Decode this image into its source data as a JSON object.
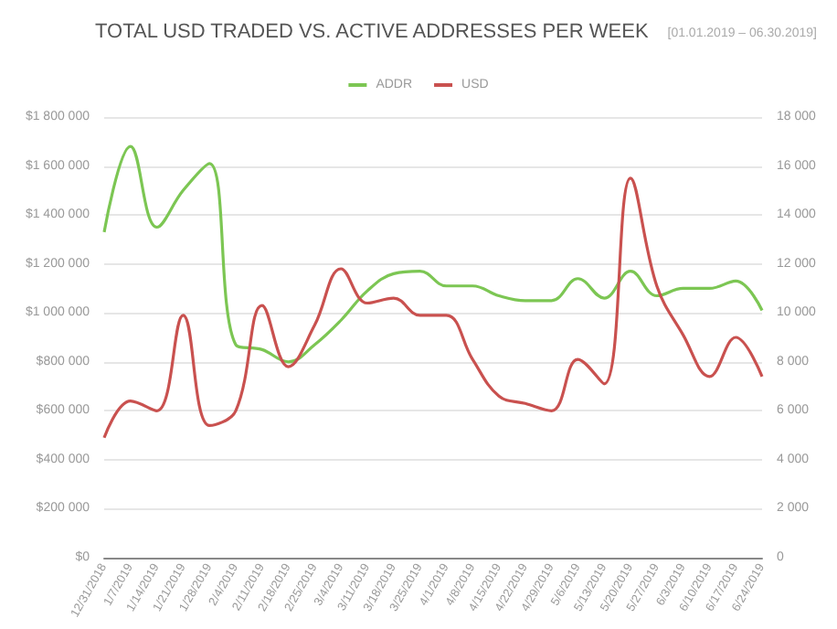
{
  "chart_data": {
    "type": "line",
    "title": "TOTAL USD TRADED VS. ACTIVE ADDRESSES PER WEEK",
    "subtitle": "[01.01.2019 – 06.30.2019]",
    "categories": [
      "12/31/2018",
      "1/7/2019",
      "1/14/2019",
      "1/21/2019",
      "1/28/2019",
      "2/4/2019",
      "2/11/2019",
      "2/18/2019",
      "2/25/2019",
      "3/4/2019",
      "3/11/2019",
      "3/18/2019",
      "3/25/2019",
      "4/1/2019",
      "4/8/2019",
      "4/15/2019",
      "4/22/2019",
      "4/29/2019",
      "5/6/2019",
      "5/13/2019",
      "5/20/2019",
      "5/27/2019",
      "6/3/2019",
      "6/10/2019",
      "6/17/2019",
      "6/24/2019"
    ],
    "series": [
      {
        "name": "ADDR",
        "color": "#7cc653",
        "axis": "y2",
        "values": [
          13300,
          16800,
          13500,
          15000,
          16100,
          8700,
          8500,
          8000,
          8700,
          9700,
          10900,
          11600,
          11700,
          11100,
          11100,
          10700,
          10500,
          10500,
          11400,
          10600,
          11700,
          10700,
          11000,
          11000,
          11300,
          10100
        ]
      },
      {
        "name": "USD",
        "color": "#c9514f",
        "values": [
          490000,
          640000,
          600000,
          990000,
          540000,
          600000,
          1030000,
          780000,
          950000,
          1180000,
          1040000,
          1060000,
          990000,
          990000,
          810000,
          660000,
          630000,
          600000,
          810000,
          710000,
          1550000,
          1110000,
          910000,
          740000,
          900000,
          740000
        ]
      }
    ],
    "ylim": [
      0,
      1800000
    ],
    "yticks": [
      {
        "value": 0,
        "label": "$0"
      },
      {
        "value": 200000,
        "label": "$200 000"
      },
      {
        "value": 400000,
        "label": "$400 000"
      },
      {
        "value": 600000,
        "label": "$600 000"
      },
      {
        "value": 800000,
        "label": "$800 000"
      },
      {
        "value": 1000000,
        "label": "$1 000 000"
      },
      {
        "value": 1200000,
        "label": "$1 200 000"
      },
      {
        "value": 1400000,
        "label": "$1 400 000"
      },
      {
        "value": 1600000,
        "label": "$1 600 000"
      },
      {
        "value": 1800000,
        "label": "$1 800 000"
      }
    ],
    "y2lim": [
      0,
      18000
    ],
    "y2ticks": [
      0,
      {
        "value": 2000,
        "label": "2 000"
      },
      {
        "value": 4000,
        "label": "4 000"
      },
      {
        "value": 6000,
        "label": "6 000"
      },
      {
        "value": 8000,
        "label": "8 000"
      },
      {
        "value": 10000,
        "label": "10 000"
      },
      {
        "value": 12000,
        "label": "12 000"
      },
      {
        "value": 14000,
        "label": "14 000"
      },
      {
        "value": 16000,
        "label": "16 000"
      },
      {
        "value": 18000,
        "label": "18 000"
      }
    ],
    "grid": "y",
    "legend": "top",
    "marker": "none",
    "line_style": "solid"
  }
}
